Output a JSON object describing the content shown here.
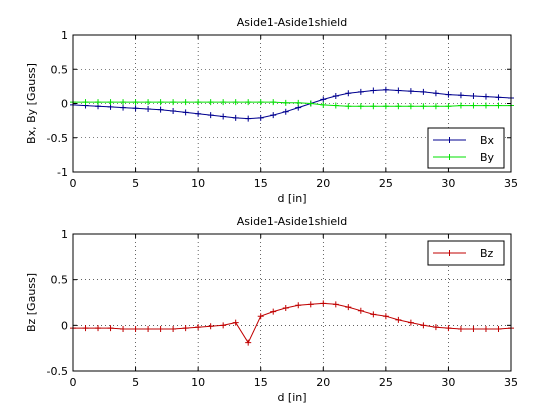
{
  "chart_data": [
    {
      "type": "line",
      "title": "Aside1-Aside1shield",
      "xlabel": "d [in]",
      "ylabel": "Bx, By [Gauss]",
      "xlim": [
        0,
        35
      ],
      "ylim": [
        -1,
        1
      ],
      "xticks": [
        0,
        5,
        10,
        15,
        20,
        25,
        30,
        35
      ],
      "yticks": [
        -1,
        -0.5,
        0,
        0.5,
        1
      ],
      "grid": true,
      "legend_position": "bottom-right",
      "x": [
        0,
        1,
        2,
        3,
        4,
        5,
        6,
        7,
        8,
        9,
        10,
        11,
        12,
        13,
        14,
        15,
        16,
        17,
        18,
        19,
        20,
        21,
        22,
        23,
        24,
        25,
        26,
        27,
        28,
        29,
        30,
        31,
        32,
        33,
        34,
        35
      ],
      "series": [
        {
          "name": "Bx",
          "color": "#00008f",
          "values": [
            -0.02,
            -0.03,
            -0.04,
            -0.05,
            -0.06,
            -0.07,
            -0.08,
            -0.09,
            -0.11,
            -0.13,
            -0.15,
            -0.17,
            -0.19,
            -0.21,
            -0.22,
            -0.21,
            -0.17,
            -0.12,
            -0.06,
            0.0,
            0.06,
            0.11,
            0.15,
            0.17,
            0.19,
            0.2,
            0.19,
            0.18,
            0.17,
            0.15,
            0.13,
            0.12,
            0.11,
            0.1,
            0.09,
            0.08
          ]
        },
        {
          "name": "By",
          "color": "#00e000",
          "values": [
            0.02,
            0.02,
            0.02,
            0.02,
            0.02,
            0.02,
            0.02,
            0.02,
            0.02,
            0.02,
            0.02,
            0.02,
            0.02,
            0.02,
            0.02,
            0.02,
            0.02,
            0.01,
            0.01,
            0.0,
            -0.02,
            -0.03,
            -0.04,
            -0.04,
            -0.04,
            -0.04,
            -0.04,
            -0.04,
            -0.04,
            -0.04,
            -0.04,
            -0.03,
            -0.03,
            -0.03,
            -0.03,
            -0.03
          ]
        }
      ]
    },
    {
      "type": "line",
      "title": "Aside1-Aside1shield",
      "xlabel": "d [in]",
      "ylabel": "Bz [Gauss]",
      "xlim": [
        0,
        35
      ],
      "ylim": [
        -0.5,
        1
      ],
      "xticks": [
        0,
        5,
        10,
        15,
        20,
        25,
        30,
        35
      ],
      "yticks": [
        -0.5,
        0,
        0.5,
        1
      ],
      "grid": true,
      "legend_position": "top-right",
      "x": [
        0,
        1,
        2,
        3,
        4,
        5,
        6,
        7,
        8,
        9,
        10,
        11,
        12,
        13,
        14,
        15,
        16,
        17,
        18,
        19,
        20,
        21,
        22,
        23,
        24,
        25,
        26,
        27,
        28,
        29,
        30,
        31,
        32,
        33,
        34,
        35
      ],
      "series": [
        {
          "name": "Bz",
          "color": "#c00000",
          "values": [
            -0.03,
            -0.03,
            -0.03,
            -0.03,
            -0.04,
            -0.04,
            -0.04,
            -0.04,
            -0.04,
            -0.03,
            -0.02,
            -0.01,
            0.0,
            0.03,
            -0.19,
            0.1,
            0.15,
            0.19,
            0.22,
            0.23,
            0.24,
            0.23,
            0.2,
            0.16,
            0.12,
            0.1,
            0.06,
            0.03,
            0.0,
            -0.02,
            -0.03,
            -0.04,
            -0.04,
            -0.04,
            -0.04,
            -0.03
          ]
        }
      ]
    }
  ]
}
